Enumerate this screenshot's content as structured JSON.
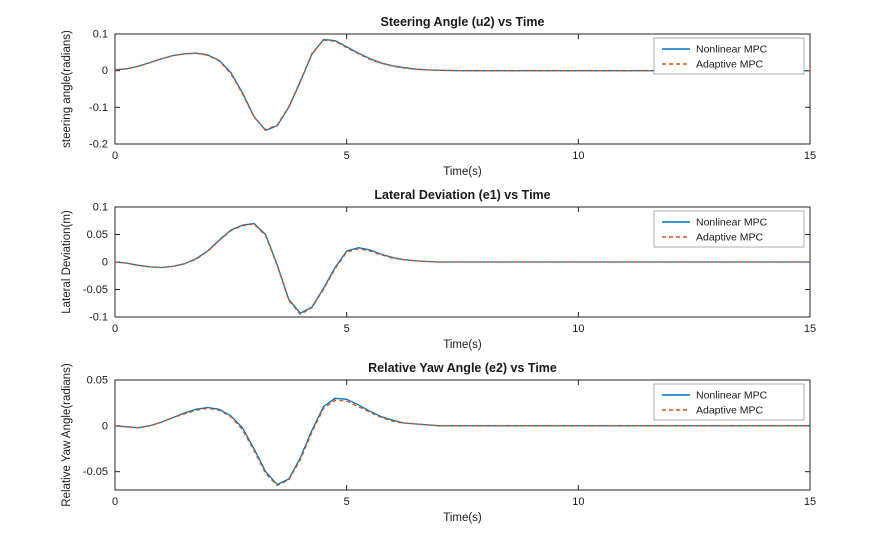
{
  "figure": {
    "background": "#ffffff"
  },
  "colors": {
    "axis": "#262626",
    "text": "#1a1a1a",
    "legend_border": "#9a9a9a"
  },
  "legend": {
    "entries": [
      "Nonlinear MPC",
      "Adaptive MPC"
    ]
  },
  "chart_data": [
    {
      "type": "line",
      "title": "Steering Angle (u2) vs Time",
      "xlabel": "Time(s)",
      "ylabel": "steering angle(radians)",
      "xlim": [
        0,
        15
      ],
      "ylim": [
        -0.2,
        0.1
      ],
      "xticks": [
        0,
        5,
        10,
        15
      ],
      "yticks": [
        -0.2,
        -0.1,
        0,
        0.1
      ],
      "legend_position": "top-right",
      "grid": false,
      "x": [
        0,
        0.25,
        0.5,
        0.75,
        1,
        1.25,
        1.5,
        1.75,
        2,
        2.25,
        2.5,
        2.75,
        3,
        3.25,
        3.5,
        3.75,
        4,
        4.25,
        4.5,
        4.75,
        5,
        5.25,
        5.5,
        5.75,
        6,
        6.25,
        6.5,
        6.75,
        7,
        7.5,
        8,
        9,
        10,
        11,
        12,
        13,
        14,
        15
      ],
      "series": [
        {
          "name": "Nonlinear MPC",
          "color": "#0072BD",
          "style": "solid",
          "values": [
            0.002,
            0.005,
            0.012,
            0.022,
            0.032,
            0.041,
            0.046,
            0.048,
            0.043,
            0.028,
            -0.005,
            -0.06,
            -0.125,
            -0.163,
            -0.15,
            -0.1,
            -0.03,
            0.045,
            0.085,
            0.082,
            0.065,
            0.048,
            0.033,
            0.021,
            0.013,
            0.008,
            0.004,
            0.002,
            0.001,
            0,
            0,
            0,
            0,
            0,
            0,
            0,
            0,
            0
          ]
        },
        {
          "name": "Adaptive MPC",
          "color": "#D95319",
          "style": "dashed",
          "values": [
            0.002,
            0.005,
            0.012,
            0.022,
            0.032,
            0.041,
            0.046,
            0.047,
            0.042,
            0.026,
            -0.008,
            -0.063,
            -0.127,
            -0.161,
            -0.148,
            -0.098,
            -0.028,
            0.047,
            0.083,
            0.08,
            0.063,
            0.046,
            0.031,
            0.02,
            0.012,
            0.007,
            0.004,
            0.002,
            0.001,
            0,
            0,
            0,
            0,
            0,
            0,
            0,
            0,
            0
          ]
        }
      ]
    },
    {
      "type": "line",
      "title": "Lateral Deviation (e1) vs Time",
      "xlabel": "Time(s)",
      "ylabel": "Lateral Deviation(m)",
      "xlim": [
        0,
        15
      ],
      "ylim": [
        -0.1,
        0.1
      ],
      "xticks": [
        0,
        5,
        10,
        15
      ],
      "yticks": [
        -0.1,
        -0.05,
        0,
        0.05,
        0.1
      ],
      "legend_position": "top-right",
      "grid": false,
      "x": [
        0,
        0.25,
        0.5,
        0.75,
        1,
        1.25,
        1.5,
        1.75,
        2,
        2.25,
        2.5,
        2.75,
        3,
        3.25,
        3.5,
        3.75,
        4,
        4.25,
        4.5,
        4.75,
        5,
        5.25,
        5.5,
        5.75,
        6,
        6.25,
        6.5,
        6.75,
        7,
        7.5,
        8,
        9,
        10,
        11,
        12,
        13,
        14,
        15
      ],
      "series": [
        {
          "name": "Nonlinear MPC",
          "color": "#0072BD",
          "style": "solid",
          "values": [
            0,
            -0.002,
            -0.006,
            -0.009,
            -0.01,
            -0.008,
            -0.003,
            0.006,
            0.02,
            0.04,
            0.058,
            0.067,
            0.07,
            0.05,
            -0.005,
            -0.068,
            -0.093,
            -0.082,
            -0.048,
            -0.01,
            0.02,
            0.026,
            0.022,
            0.014,
            0.008,
            0.004,
            0.002,
            0.001,
            0,
            0,
            0,
            0,
            0,
            0,
            0,
            0,
            0,
            0
          ]
        },
        {
          "name": "Adaptive MPC",
          "color": "#D95319",
          "style": "dashed",
          "values": [
            0,
            -0.002,
            -0.006,
            -0.009,
            -0.01,
            -0.008,
            -0.003,
            0.005,
            0.019,
            0.039,
            0.057,
            0.066,
            0.069,
            0.048,
            -0.007,
            -0.07,
            -0.095,
            -0.083,
            -0.05,
            -0.012,
            0.018,
            0.024,
            0.02,
            0.013,
            0.007,
            0.004,
            0.002,
            0.001,
            0,
            0,
            0,
            0,
            0,
            0,
            0,
            0,
            0,
            0
          ]
        }
      ]
    },
    {
      "type": "line",
      "title": "Relative Yaw Angle (e2) vs Time",
      "xlabel": "Time(s)",
      "ylabel": "Relative Yaw Angle(radians)",
      "xlim": [
        0,
        15
      ],
      "ylim": [
        -0.07,
        0.05
      ],
      "xticks": [
        0,
        5,
        10,
        15
      ],
      "yticks": [
        -0.05,
        0,
        0.05
      ],
      "legend_position": "top-right",
      "grid": false,
      "x": [
        0,
        0.25,
        0.5,
        0.75,
        1,
        1.25,
        1.5,
        1.75,
        2,
        2.25,
        2.5,
        2.75,
        3,
        3.25,
        3.5,
        3.75,
        4,
        4.25,
        4.5,
        4.75,
        5,
        5.25,
        5.5,
        5.75,
        6,
        6.25,
        6.5,
        6.75,
        7,
        7.5,
        8,
        9,
        10,
        11,
        12,
        13,
        14,
        15
      ],
      "series": [
        {
          "name": "Nonlinear MPC",
          "color": "#0072BD",
          "style": "solid",
          "values": [
            0,
            -0.001,
            -0.002,
            0,
            0.004,
            0.009,
            0.014,
            0.018,
            0.02,
            0.018,
            0.011,
            -0.002,
            -0.025,
            -0.05,
            -0.064,
            -0.058,
            -0.035,
            -0.005,
            0.021,
            0.03,
            0.029,
            0.023,
            0.016,
            0.01,
            0.006,
            0.003,
            0.002,
            0.001,
            0,
            0,
            0,
            0,
            0,
            0,
            0,
            0,
            0,
            0
          ]
        },
        {
          "name": "Adaptive MPC",
          "color": "#D95319",
          "style": "dashed",
          "values": [
            0,
            -0.001,
            -0.002,
            0,
            0.004,
            0.009,
            0.013,
            0.017,
            0.019,
            0.017,
            0.01,
            -0.004,
            -0.027,
            -0.052,
            -0.065,
            -0.059,
            -0.037,
            -0.007,
            0.019,
            0.028,
            0.027,
            0.021,
            0.015,
            0.009,
            0.005,
            0.003,
            0.002,
            0.001,
            0,
            0,
            0,
            0,
            0,
            0,
            0,
            0,
            0,
            0
          ]
        }
      ]
    }
  ]
}
